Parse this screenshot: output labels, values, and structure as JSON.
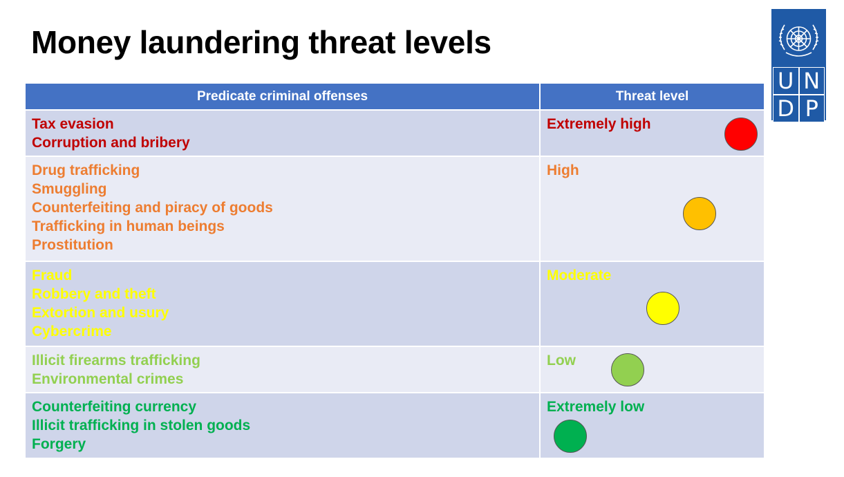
{
  "title": "Money laundering threat levels",
  "logo": {
    "letters": [
      "U",
      "N",
      "D",
      "P"
    ],
    "emblem_icon": "un-emblem-icon",
    "color": "#1f5aa6"
  },
  "table": {
    "headers": {
      "offenses": "Predicate criminal offenses",
      "threat": "Threat level"
    },
    "header_color": "#4472c4",
    "rows": [
      {
        "offenses": [
          "Tax evasion",
          "Corruption and bribery"
        ],
        "level": "Extremely high",
        "text_color": "#c00000",
        "dot_color": "#ff0000"
      },
      {
        "offenses": [
          "Drug trafficking",
          "Smuggling",
          "Counterfeiting and piracy of goods",
          "Trafficking in human beings",
          "Prostitution"
        ],
        "level": "High",
        "text_color": "#ed7d31",
        "dot_color": "#ffc000"
      },
      {
        "offenses": [
          "Fraud",
          "Robbery and theft",
          "Extortion and usury",
          "Cybercrime"
        ],
        "level": "Moderate",
        "text_color": "#ffff00",
        "dot_color": "#ffff00"
      },
      {
        "offenses": [
          "Illicit firearms trafficking",
          "Environmental crimes"
        ],
        "level": "Low",
        "text_color": "#92d050",
        "dot_color": "#92d050"
      },
      {
        "offenses": [
          "Counterfeiting currency",
          "Illicit trafficking in stolen goods",
          "Forgery"
        ],
        "level": "Extremely low",
        "text_color": "#00b050",
        "dot_color": "#00b050"
      }
    ]
  }
}
